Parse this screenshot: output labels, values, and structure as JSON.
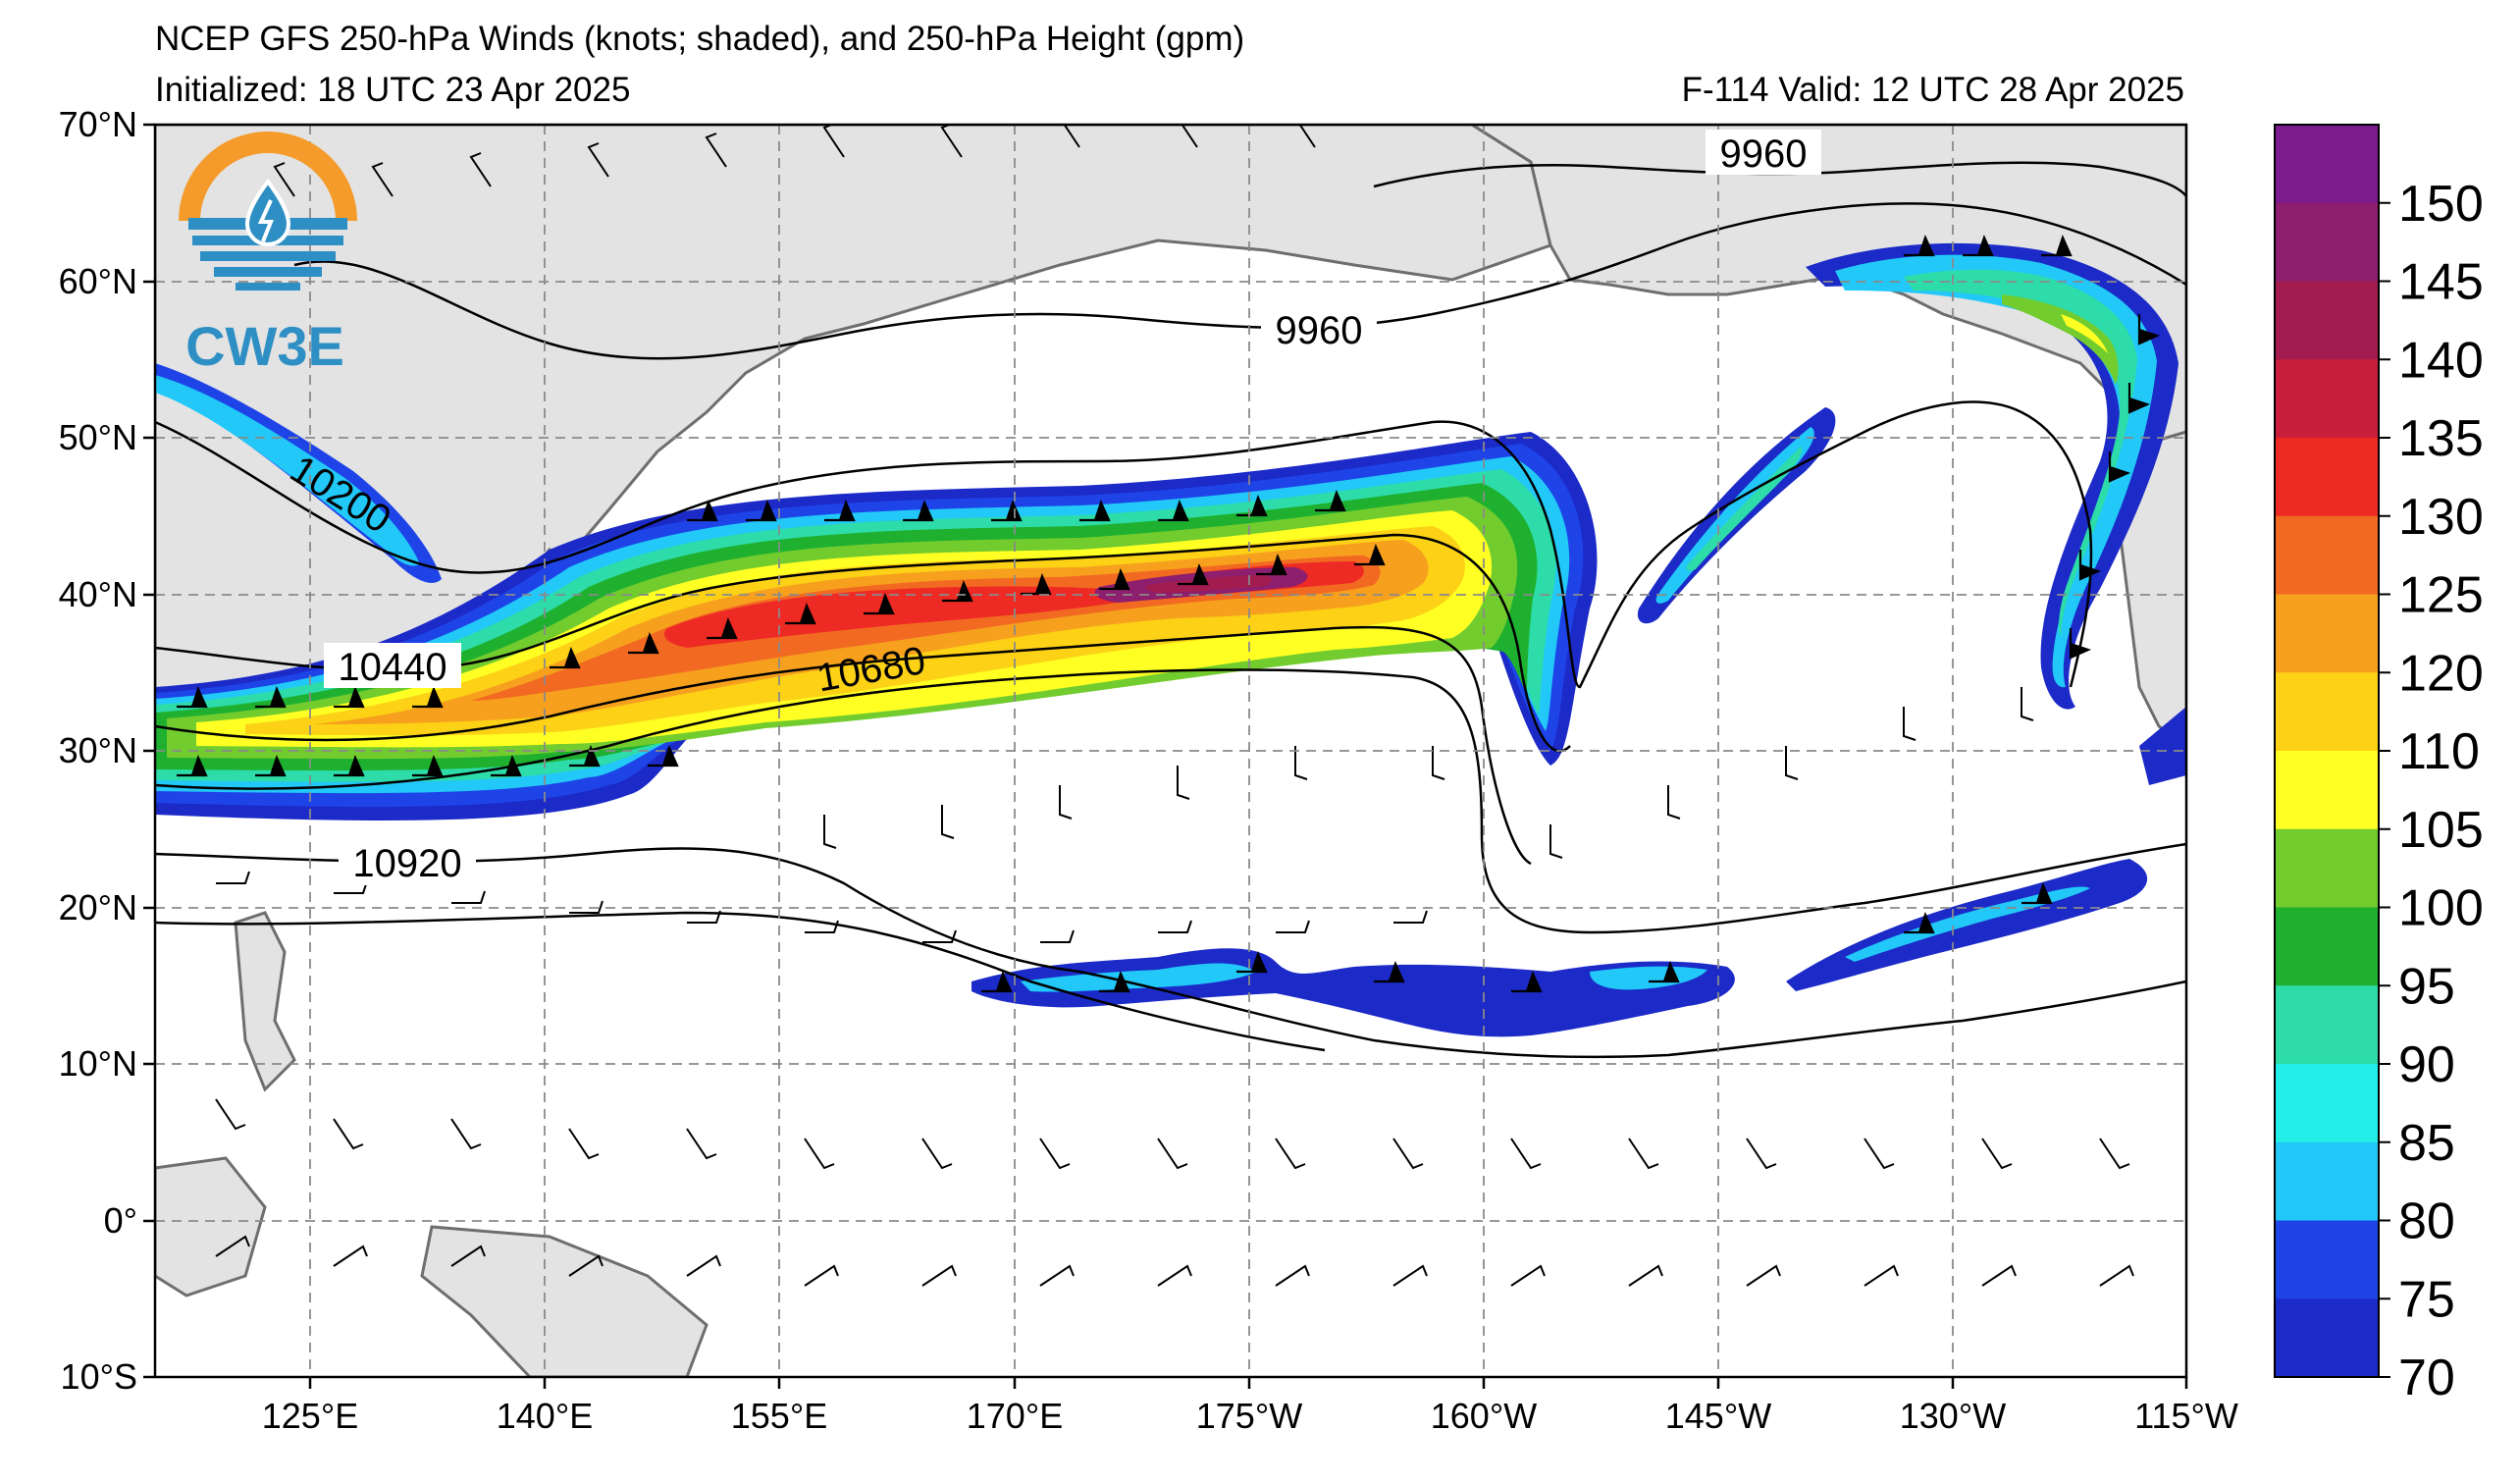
{
  "header": {
    "title": "NCEP GFS 250-hPa Winds (knots; shaded), and 250-hPa Height (gpm)",
    "initialized": "Initialized: 18 UTC 23 Apr 2025",
    "valid": "F-114  Valid: 12 UTC 28 Apr 2025"
  },
  "logo": {
    "text": "CW3E",
    "colors": {
      "orange": "#F59B2B",
      "blue": "#2E8FC4"
    }
  },
  "map": {
    "lat_labels": [
      "70°N",
      "60°N",
      "50°N",
      "40°N",
      "30°N",
      "20°N",
      "10°N",
      "0°",
      "10°S"
    ],
    "lon_labels": [
      "125°E",
      "140°E",
      "155°E",
      "170°E",
      "175°W",
      "160°W",
      "145°W",
      "130°W",
      "115°W"
    ],
    "contour_labels": [
      "9960",
      "9960",
      "10200",
      "10440",
      "10680",
      "10920"
    ]
  },
  "colorbar": {
    "ticks": [
      "150",
      "145",
      "140",
      "135",
      "130",
      "125",
      "120",
      "110",
      "105",
      "100",
      "95",
      "90",
      "85",
      "80",
      "75",
      "70"
    ],
    "colors": [
      "#7A1C8E",
      "#8E1E6E",
      "#A21C50",
      "#C81E3C",
      "#EE2A24",
      "#F26A22",
      "#F6A01E",
      "#FCD116",
      "#FFFF24",
      "#72CC2E",
      "#1FB02F",
      "#2DDCA8",
      "#22F0E8",
      "#22C8F8",
      "#1E44E8",
      "#1C2AC8"
    ]
  }
}
